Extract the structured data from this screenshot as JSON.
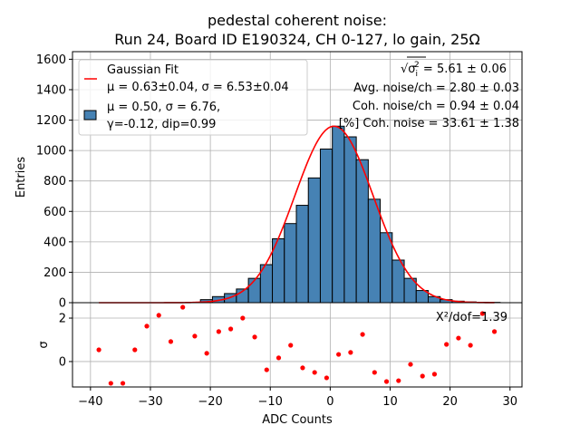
{
  "chart_data": [
    {
      "type": "bar",
      "title": "pedestal coherent noise:",
      "subtitle": "Run 24, Board ID E190324, CH 0-127, lo gain, 25Ω",
      "xlabel": "ADC Counts",
      "ylabel": "Entries",
      "xlim": [
        -43,
        32
      ],
      "ylim": [
        0,
        1650
      ],
      "xticks": [
        -40,
        -30,
        -20,
        -10,
        0,
        10,
        20,
        30
      ],
      "xtick_labels": [
        "−40",
        "−30",
        "−20",
        "−10",
        "0",
        "10",
        "20",
        "30"
      ],
      "yticks": [
        0,
        200,
        400,
        600,
        800,
        1000,
        1200,
        1400,
        1600
      ],
      "ytick_labels": [
        "0",
        "200",
        "400",
        "600",
        "800",
        "1000",
        "1200",
        "1400",
        "1600"
      ],
      "grid": true,
      "bin_width": 2,
      "bin_left_edges": [
        -23.65,
        -21.65,
        -19.65,
        -17.65,
        -15.65,
        -13.65,
        -11.65,
        -9.65,
        -7.65,
        -5.65,
        -3.65,
        -1.65,
        0.35,
        2.35,
        4.35,
        6.35,
        8.35,
        10.35,
        12.35,
        14.35,
        16.35,
        18.35,
        20.35,
        22.35,
        24.35,
        26.35
      ],
      "values": [
        3,
        20,
        40,
        60,
        90,
        160,
        250,
        420,
        520,
        640,
        820,
        1010,
        1160,
        1090,
        940,
        680,
        460,
        280,
        160,
        80,
        40,
        20,
        10,
        5,
        3,
        2
      ],
      "bar_color": "#4682b4",
      "fit": {
        "name": "Gaussian Fit",
        "mu": 0.63,
        "sigma": 6.53,
        "amplitude": 1160,
        "x_range": [
          -38.6,
          27.4
        ],
        "color": "#ff0000"
      },
      "legend": {
        "placement": "top-left",
        "entries": [
          {
            "line1": "Gaussian Fit",
            "line2": "μ = 0.63±0.04, σ = 6.53±0.04",
            "marker": "line",
            "color": "#ff0000"
          },
          {
            "line1": "μ = 0.50, σ = 6.76,",
            "line2": "γ=-0.12, dip=0.99",
            "marker": "patch",
            "color": "#4682b4"
          }
        ]
      },
      "annotations": [
        {
          "prefix": "√σ",
          "sub": "i",
          "sup": "2",
          "text": " = 5.61 ± 0.06"
        },
        {
          "text": "Avg. noise/ch = 2.80 ± 0.03"
        },
        {
          "text": "Coh. noise/ch = 0.94 ± 0.04"
        },
        {
          "text": "[%] Coh. noise = 33.61  ± 1.38"
        }
      ]
    },
    {
      "type": "scatter",
      "xlabel": "ADC Counts",
      "ylabel": "σ",
      "xlim": [
        -43,
        32
      ],
      "ylim": [
        -1.17,
        2.71
      ],
      "yticks": [
        0,
        2
      ],
      "ytick_labels": [
        "0",
        "2"
      ],
      "grid": true,
      "annotation": "X²/dof=1.39",
      "color": "#ff0000",
      "x": [
        -38.6,
        -36.6,
        -34.6,
        -32.6,
        -30.6,
        -28.6,
        -26.6,
        -24.6,
        -22.6,
        -20.6,
        -18.6,
        -16.6,
        -14.6,
        -12.6,
        -10.6,
        -8.6,
        -6.6,
        -4.6,
        -2.6,
        -0.6,
        1.4,
        3.4,
        5.4,
        7.4,
        9.4,
        11.4,
        13.4,
        15.4,
        17.4,
        19.4,
        21.4,
        23.4,
        25.4,
        27.4
      ],
      "y": [
        0.54,
        -1.0,
        -1.0,
        0.54,
        1.63,
        2.13,
        0.92,
        2.5,
        1.17,
        0.38,
        1.38,
        1.5,
        2.0,
        1.13,
        -0.38,
        0.17,
        0.75,
        -0.29,
        -0.5,
        -0.75,
        0.33,
        0.42,
        1.25,
        -0.5,
        -0.92,
        -0.88,
        -0.13,
        -0.67,
        -0.58,
        0.79,
        1.08,
        0.75,
        2.21,
        1.38
      ]
    }
  ]
}
